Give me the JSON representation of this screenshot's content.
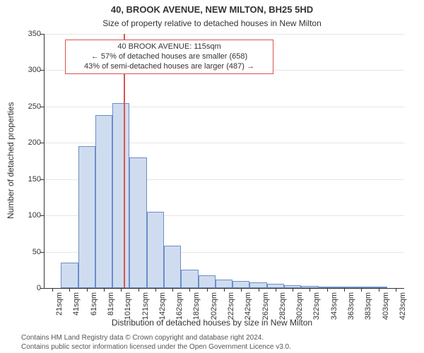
{
  "title": "40, BROOK AVENUE, NEW MILTON, BH25 5HD",
  "subtitle": "Size of property relative to detached houses in New Milton",
  "y_axis_label": "Number of detached properties",
  "x_axis_label": "Distribution of detached houses by size in New Milton",
  "footnote_line1": "Contains HM Land Registry data © Crown copyright and database right 2024.",
  "footnote_line2": "Contains public sector information licensed under the Open Government Licence v3.0.",
  "title_fontsize": 13,
  "subtitle_fontsize": 12,
  "axis_label_fontsize": 12,
  "tick_fontsize": 11,
  "footnote_fontsize": 10,
  "background_color": "#ffffff",
  "text_color": "#333333",
  "axis_color": "#333333",
  "grid_color": "#e6e6e6",
  "bar_fill": "#cfdcf0",
  "bar_border": "#6b8ec6",
  "bar_width_ratio": 1.0,
  "marker_color": "#d9534f",
  "marker_line_width": 2,
  "marker_at_sqm": 115,
  "annotation": {
    "line1": "40 BROOK AVENUE: 115sqm",
    "line2": "← 57% of detached houses are smaller (658)",
    "line3": "43% of semi-detached houses are larger (487) →",
    "border_color": "#d9534f",
    "background": "#ffffff",
    "fontsize": 11
  },
  "ylim": [
    0,
    350
  ],
  "ytick_step": 50,
  "yticks": [
    0,
    50,
    100,
    150,
    200,
    250,
    300,
    350
  ],
  "x_bin_start": 21,
  "x_bin_width": 20,
  "x_categories": [
    "21sqm",
    "41sqm",
    "61sqm",
    "81sqm",
    "101sqm",
    "121sqm",
    "142sqm",
    "162sqm",
    "182sqm",
    "202sqm",
    "222sqm",
    "242sqm",
    "262sqm",
    "282sqm",
    "302sqm",
    "322sqm",
    "343sqm",
    "363sqm",
    "383sqm",
    "403sqm",
    "423sqm"
  ],
  "bar_values": [
    0,
    35,
    195,
    238,
    255,
    180,
    105,
    58,
    25,
    18,
    12,
    10,
    8,
    6,
    4,
    3,
    2,
    2,
    1,
    1,
    0
  ]
}
